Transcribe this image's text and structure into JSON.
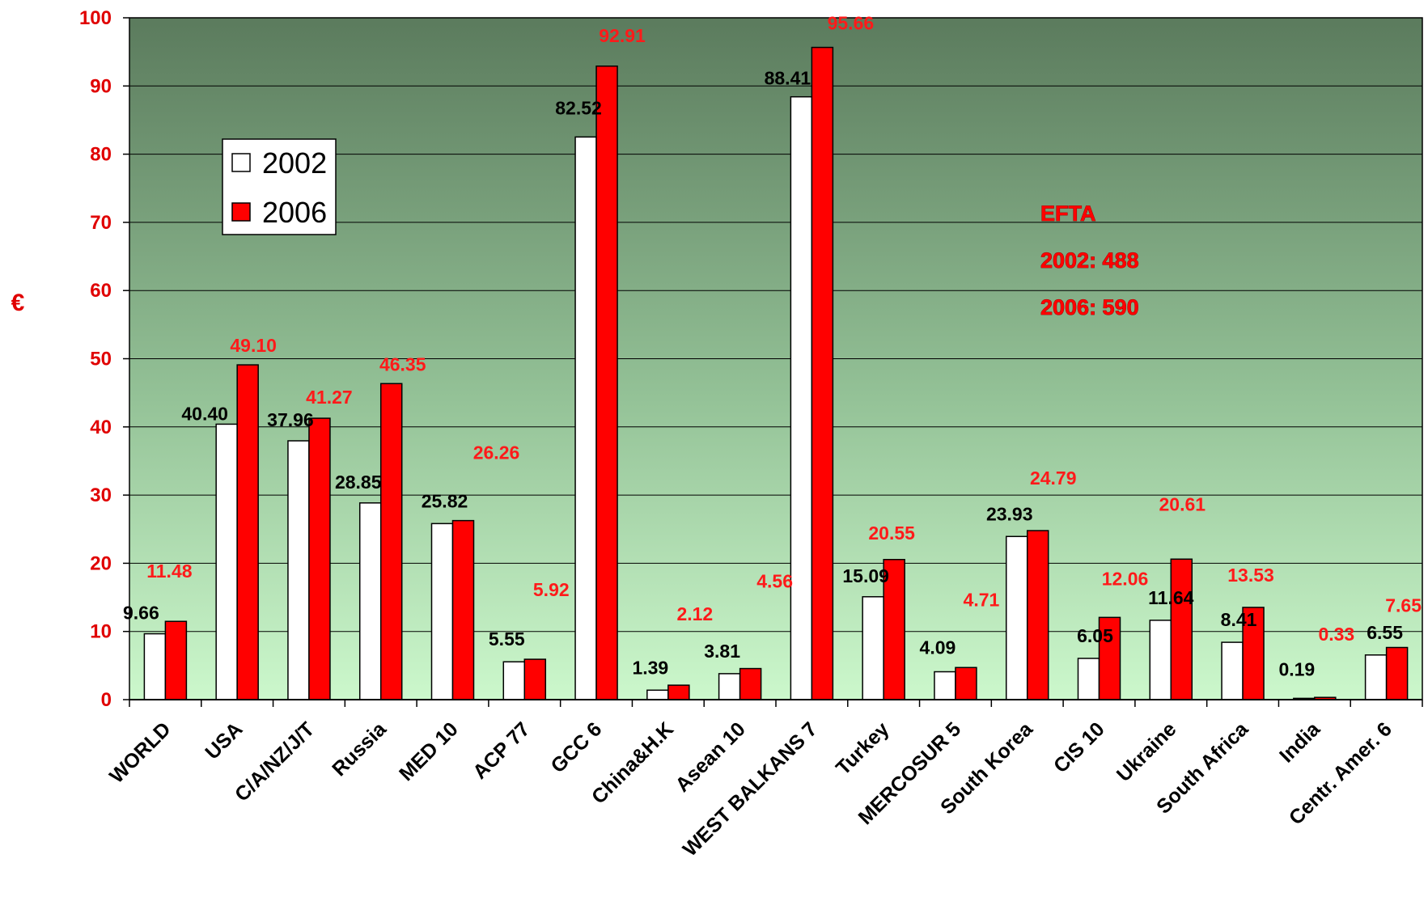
{
  "chart_data": {
    "type": "bar",
    "ylabel": "€",
    "ylim": [
      0,
      100
    ],
    "yticks": [
      0,
      10,
      20,
      30,
      40,
      50,
      60,
      70,
      80,
      90,
      100
    ],
    "grid": true,
    "legend_position": "top-left",
    "categories": [
      "WORLD",
      "USA",
      "C/A/NZ/J/T",
      "Russia",
      "MED 10",
      "ACP 77",
      "GCC 6",
      "China&H.K",
      "Asean 10",
      "WEST BALKANS 7",
      "Turkey",
      "MERCOSUR 5",
      "South Korea",
      "CIS 10",
      "Ukraine",
      "South Africa",
      "India",
      "Centr. Amer. 6"
    ],
    "series": [
      {
        "name": "2002",
        "color": "#ffffff",
        "values": [
          9.66,
          40.4,
          37.96,
          28.85,
          25.82,
          5.55,
          82.52,
          1.39,
          3.81,
          88.41,
          15.09,
          4.09,
          23.93,
          6.05,
          11.64,
          8.41,
          0.19,
          6.55
        ],
        "labels": [
          "9.66",
          "40.40",
          "37.96",
          "28.85",
          "25.82",
          "5.55",
          "82.52",
          "1.39",
          "3.81",
          "88.41",
          "15.09",
          "4.09",
          "23.93",
          "6.05",
          "11.64",
          "8.41",
          "0.19",
          "6.55"
        ]
      },
      {
        "name": "2006",
        "color": "#ff0000",
        "values": [
          11.48,
          49.1,
          41.27,
          46.35,
          26.26,
          5.92,
          92.91,
          2.12,
          4.56,
          95.66,
          20.55,
          4.71,
          24.79,
          12.06,
          20.61,
          13.53,
          0.33,
          7.65
        ],
        "labels": [
          "11.48",
          "49.10",
          "41.27",
          "46.35",
          "26.26",
          "5.92",
          "92.91",
          "2.12",
          "4.56",
          "95.66",
          "20.55",
          "4.71",
          "24.79",
          "12.06",
          "20.61",
          "13.53",
          "0.33",
          "7.65"
        ]
      }
    ],
    "annotations": [
      "EFTA",
      "2002: 488",
      "2006: 590"
    ],
    "colors": {
      "background_top": "#5a7a5c",
      "background_bottom": "#c8f5c8",
      "gridline": "#000000",
      "tick_label": "#e00000"
    }
  }
}
